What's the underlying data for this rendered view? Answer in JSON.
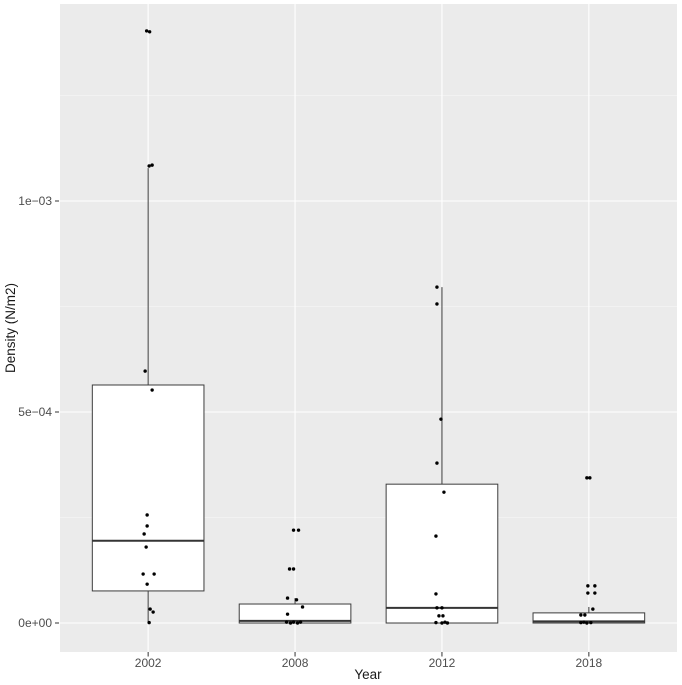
{
  "chart_data": {
    "type": "boxplot",
    "title": "",
    "xlabel": "Year",
    "ylabel": "Density (N/m2)",
    "categories": [
      "2002",
      "2008",
      "2012",
      "2018"
    ],
    "ylim": [
      -6.87e-05,
      0.0014668
    ],
    "grid": true,
    "legend_position": "none",
    "y_ticks": [
      {
        "value": 0.0,
        "label": "0e+00"
      },
      {
        "value": 0.0005,
        "label": "5e−04"
      },
      {
        "value": 0.001,
        "label": "1e−03"
      }
    ],
    "y_minor_ticks": [
      0.00025,
      0.00075,
      0.00125
    ],
    "boxes": [
      {
        "category": "2002",
        "q1": 7.6e-05,
        "median": 0.000195,
        "q3": 0.000564,
        "whisker_low": 1e-06,
        "whisker_high": 0.001078
      },
      {
        "category": "2008",
        "q1": 0.0,
        "median": 5e-06,
        "q3": 4.5e-05,
        "whisker_low": 0.0,
        "whisker_high": 5.9e-05
      },
      {
        "category": "2012",
        "q1": 0.0,
        "median": 3.6e-05,
        "q3": 0.000329,
        "whisker_low": 0.0,
        "whisker_high": 0.000796
      },
      {
        "category": "2018",
        "q1": 0.0,
        "median": 4e-06,
        "q3": 2.4e-05,
        "whisker_low": 0.0,
        "whisker_high": 3.8e-05
      }
    ],
    "points": [
      {
        "category": "2002",
        "pts": [
          [
            0.001403,
            -1.5
          ],
          [
            0.001401,
            1.5
          ],
          [
            0.001083,
            1
          ],
          [
            0.001085,
            4
          ],
          [
            0.000597,
            -3
          ],
          [
            0.000552,
            4
          ],
          [
            0.000256,
            -1
          ],
          [
            0.00023,
            -1
          ],
          [
            0.000211,
            -4
          ],
          [
            0.00018,
            -2
          ],
          [
            0.000116,
            -5
          ],
          [
            0.000116,
            6
          ],
          [
            9.2e-05,
            -1
          ],
          [
            3.3e-05,
            2
          ],
          [
            2.6e-05,
            5
          ],
          [
            1e-06,
            1
          ]
        ]
      },
      {
        "category": "2008",
        "pts": [
          [
            0.00022,
            -1.5
          ],
          [
            0.00022,
            3.5
          ],
          [
            0.000128,
            -5.5
          ],
          [
            0.000128,
            -1.5
          ],
          [
            5.9e-05,
            -7.5
          ],
          [
            5.5e-05,
            1.5
          ],
          [
            3.8e-05,
            7.5
          ],
          [
            2.1e-05,
            -7.5
          ],
          [
            2e-06,
            -8.5
          ],
          [
            0.0,
            -4.5
          ],
          [
            2e-06,
            -1.5
          ],
          [
            0.0,
            2.5
          ],
          [
            2e-06,
            5.5
          ]
        ]
      },
      {
        "category": "2012",
        "pts": [
          [
            0.000796,
            -5
          ],
          [
            0.000756,
            -5
          ],
          [
            0.000483,
            -1
          ],
          [
            0.000379,
            -5
          ],
          [
            0.00031,
            2
          ],
          [
            0.000206,
            -6
          ],
          [
            6.9e-05,
            -6
          ],
          [
            3.6e-05,
            -5
          ],
          [
            3.6e-05,
            0
          ],
          [
            1.7e-05,
            -3
          ],
          [
            1.7e-05,
            1
          ],
          [
            1e-06,
            -6
          ],
          [
            0.0,
            0
          ],
          [
            2e-06,
            3
          ],
          [
            0.0,
            5.5
          ]
        ]
      },
      {
        "category": "2018",
        "pts": [
          [
            0.000344,
            -2
          ],
          [
            0.000344,
            1
          ],
          [
            8.8e-05,
            -1
          ],
          [
            8.8e-05,
            6
          ],
          [
            7.1e-05,
            -1
          ],
          [
            7.1e-05,
            6
          ],
          [
            3.3e-05,
            4
          ],
          [
            1.9e-05,
            -8
          ],
          [
            1.9e-05,
            -4
          ],
          [
            1e-06,
            -8
          ],
          [
            2e-06,
            -5
          ],
          [
            0.0,
            -2
          ],
          [
            1e-06,
            2
          ]
        ]
      }
    ]
  },
  "colors": {
    "panel_bg": "#ebebeb",
    "grid_major": "#ffffff",
    "grid_minor": "#f7f7f7",
    "box_fill": "#ffffff",
    "box_stroke": "#3c3c3c",
    "median_stroke": "#353535",
    "point_fill": "#000000",
    "tick_mark": "#333333",
    "tick_label": "#4d4d4d",
    "axis_title": "#1a1a1a"
  }
}
